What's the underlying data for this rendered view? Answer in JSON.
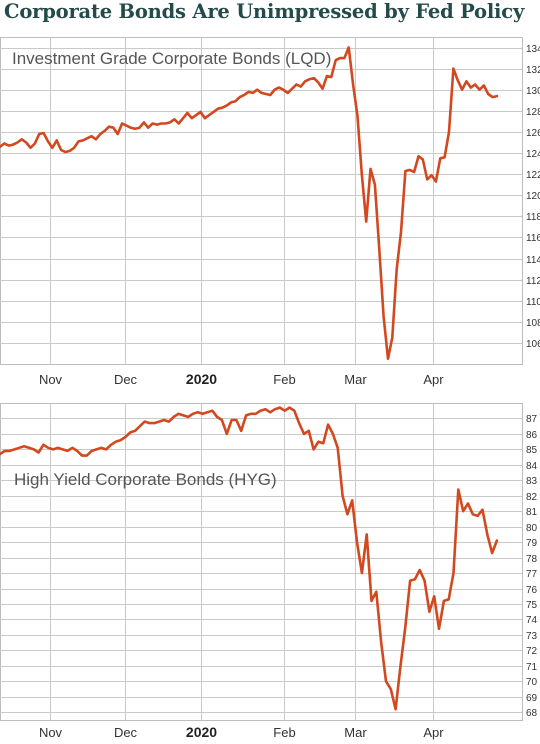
{
  "title": "Corporate Bonds Are Unimpressed by Fed Policy",
  "chart_data": [
    {
      "type": "line",
      "title": "Investment Grade Corporate Bonds (LQD)",
      "color": "#d2481f",
      "ylim": [
        104,
        135
      ],
      "yticks": [
        106,
        108,
        110,
        112,
        114,
        116,
        118,
        120,
        122,
        124,
        126,
        128,
        130,
        132,
        134
      ],
      "xticks": [
        "Nov",
        "Dec",
        "2020",
        "Feb",
        "Mar",
        "Apr"
      ],
      "grid": true,
      "series": [
        {
          "values": [
            124.6,
            124.9,
            124.7,
            124.8,
            125.0,
            125.3,
            125.0,
            124.5,
            124.9,
            125.8,
            125.9,
            125.1,
            124.5,
            125.2,
            124.3,
            124.1,
            124.2,
            124.5,
            125.1,
            125.2,
            125.4,
            125.6,
            125.3,
            125.8,
            126.1,
            126.5,
            126.4,
            125.8,
            126.8,
            126.6,
            126.4,
            126.3,
            126.4,
            126.9,
            126.4,
            126.8,
            126.7,
            126.8,
            126.8,
            126.9,
            127.2,
            126.8,
            127.3,
            127.8,
            127.3,
            127.6,
            127.9,
            127.3,
            127.6,
            127.9,
            128.2,
            128.3,
            128.5,
            128.8,
            128.9,
            129.3,
            129.5,
            129.8,
            129.7,
            130.0,
            129.7,
            129.6,
            129.5,
            130.0,
            130.2,
            130.0,
            129.7,
            130.1,
            130.5,
            130.3,
            130.8,
            131.0,
            131.1,
            130.7,
            130.1,
            131.3,
            131.2,
            132.8,
            133.0,
            133.0,
            134.0,
            130.5,
            127.5,
            122.0,
            117.5,
            122.5,
            121.0,
            115.0,
            108.5,
            104.5,
            106.5,
            113.0,
            116.5,
            122.3,
            122.4,
            122.2,
            123.7,
            123.4,
            121.5,
            121.9,
            121.3,
            123.5,
            123.6,
            126.0,
            132.0,
            130.9,
            130.0,
            130.8,
            130.2,
            130.5,
            130.0,
            130.4,
            129.6,
            129.3,
            129.4
          ]
        }
      ]
    },
    {
      "type": "line",
      "title": "High Yield Corporate Bonds (HYG)",
      "color": "#d2481f",
      "ylim": [
        67.5,
        88
      ],
      "yticks": [
        68,
        69,
        70,
        71,
        72,
        73,
        74,
        75,
        76,
        77,
        78,
        79,
        80,
        81,
        82,
        83,
        84,
        85,
        86,
        87
      ],
      "xticks": [
        "Nov",
        "Dec",
        "2020",
        "Feb",
        "Mar",
        "Apr"
      ],
      "grid": true,
      "series": [
        {
          "values": [
            84.7,
            84.9,
            84.9,
            85.0,
            85.1,
            85.2,
            85.1,
            85.0,
            84.8,
            85.3,
            85.1,
            85.0,
            85.1,
            85.0,
            84.9,
            85.1,
            84.9,
            84.6,
            84.6,
            84.9,
            85.0,
            85.1,
            85.0,
            85.3,
            85.5,
            85.6,
            85.8,
            86.1,
            86.2,
            86.5,
            86.8,
            86.7,
            86.7,
            86.8,
            86.9,
            86.8,
            87.1,
            87.3,
            87.2,
            87.1,
            87.3,
            87.4,
            87.3,
            87.4,
            87.5,
            87.1,
            86.9,
            86.0,
            86.9,
            86.9,
            86.2,
            87.2,
            87.3,
            87.3,
            87.5,
            87.6,
            87.4,
            87.6,
            87.7,
            87.5,
            87.7,
            87.5,
            86.7,
            86.0,
            86.2,
            85.0,
            85.5,
            85.4,
            86.6,
            86.0,
            85.1,
            82.0,
            80.8,
            81.7,
            79.0,
            77.0,
            79.5,
            75.2,
            75.8,
            72.5,
            70.0,
            69.5,
            68.2,
            71.0,
            73.5,
            76.5,
            76.6,
            77.2,
            76.5,
            74.5,
            75.5,
            73.4,
            75.2,
            75.3,
            77.0,
            82.4,
            81.0,
            81.5,
            80.8,
            80.7,
            81.1,
            79.5,
            78.3,
            79.1
          ]
        }
      ]
    }
  ]
}
